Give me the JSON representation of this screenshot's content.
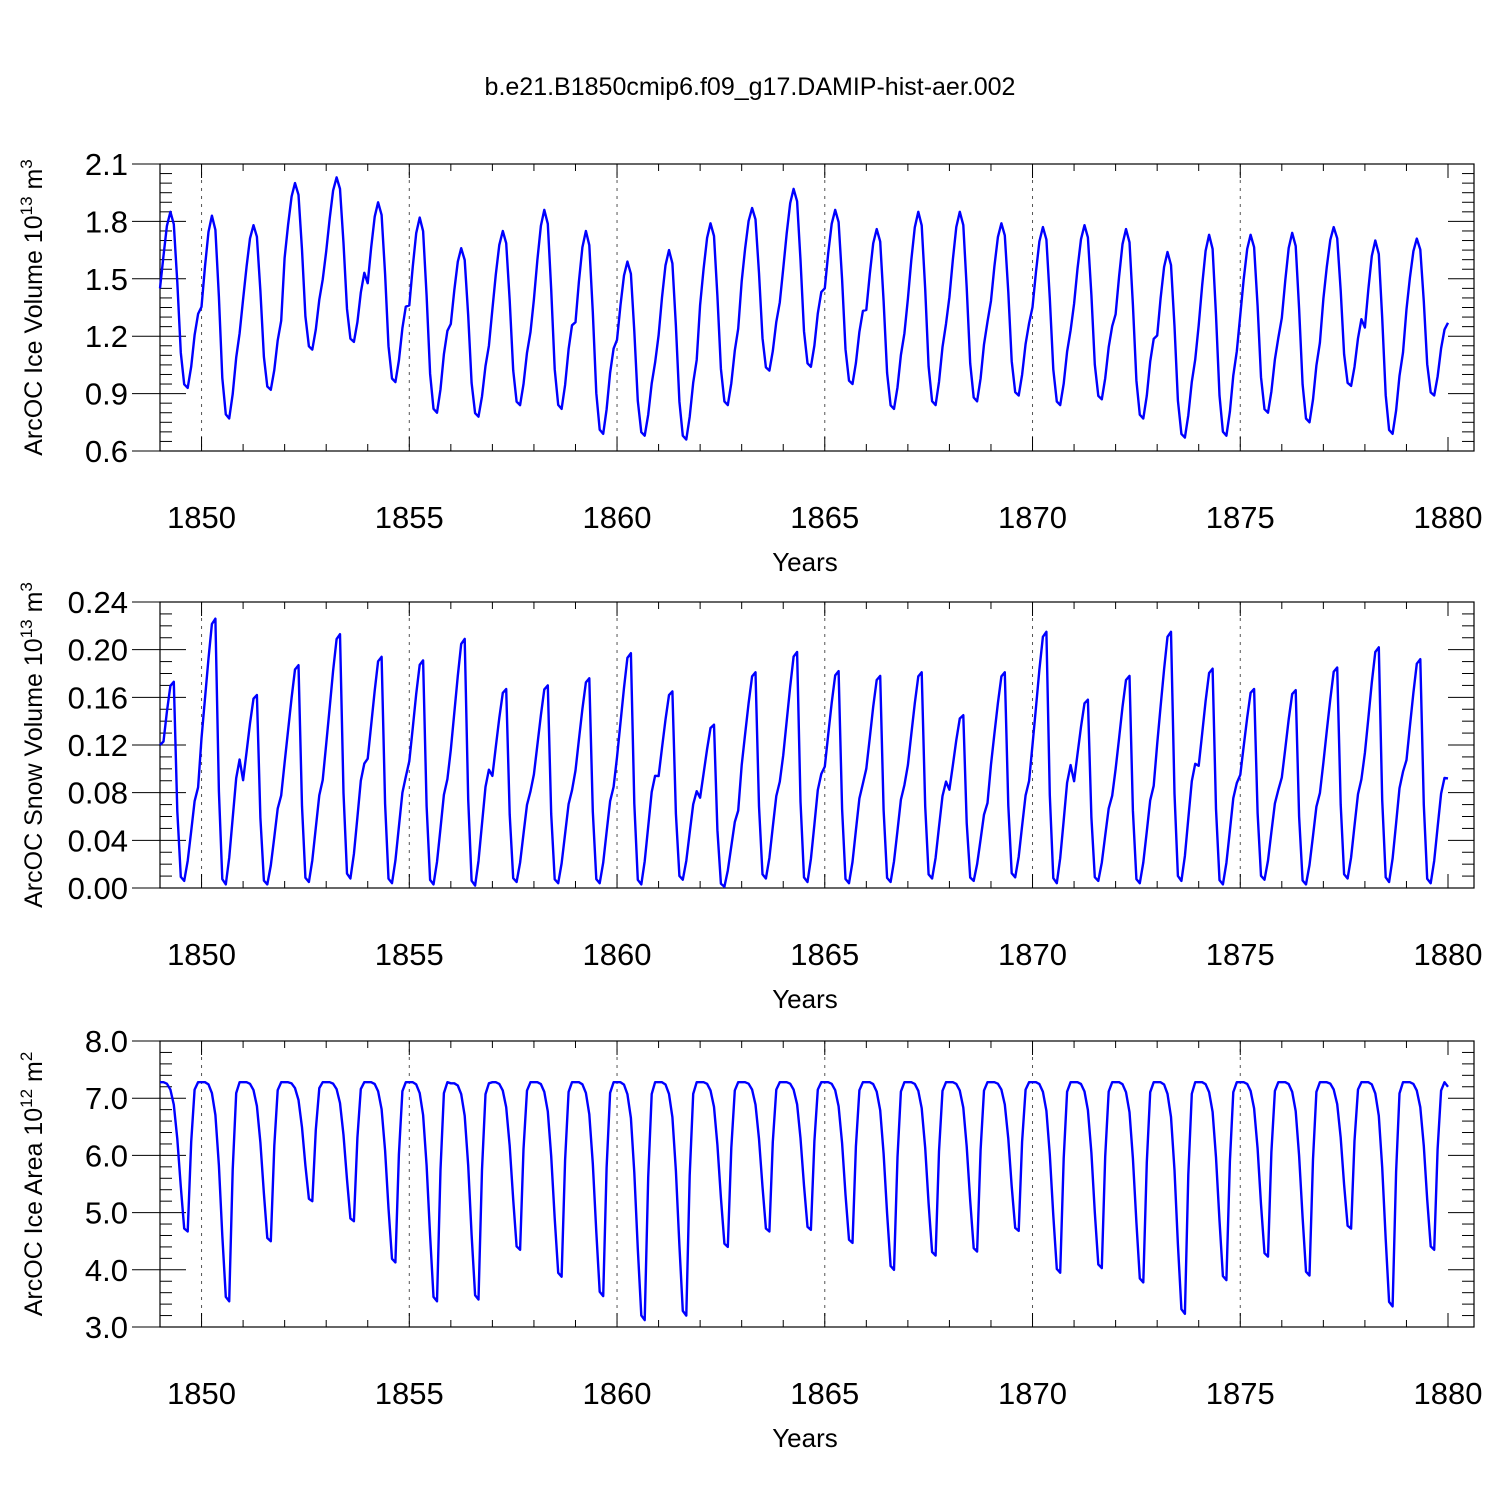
{
  "title": "b.e21.B1850cmip6.f09_g17.DAMIP-hist-aer.002",
  "colors": {
    "line": "#0000ff",
    "axis": "#000000",
    "grid": "#555555"
  },
  "chart_data": [
    {
      "type": "line",
      "name": "ice-volume",
      "ylabel": {
        "main": "ArcOC Ice Volume 10",
        "exp": "13",
        "unit": " m",
        "unit_exp": "3"
      },
      "xlabel": "Years",
      "xlim": [
        1849.0,
        1880.0
      ],
      "ylim": [
        0.6,
        2.1
      ],
      "xticks": [
        1850,
        1855,
        1860,
        1865,
        1870,
        1875,
        1880
      ],
      "yticks": [
        0.6,
        0.9,
        1.2,
        1.5,
        1.8,
        2.1
      ],
      "ytick_labels": [
        "0.6",
        "0.9",
        "1.2",
        "1.5",
        "1.8",
        "2.1"
      ],
      "ymin_minor": 0.05,
      "cycles": {
        "max": [
          1.85,
          1.83,
          1.78,
          2.0,
          2.03,
          1.9,
          1.82,
          1.66,
          1.75,
          1.86,
          1.75,
          1.59,
          1.65,
          1.79,
          1.87,
          1.97,
          1.86,
          1.76,
          1.85,
          1.85,
          1.79,
          1.77,
          1.78,
          1.76,
          1.64,
          1.73,
          1.73,
          1.74,
          1.77,
          1.7,
          1.71
        ],
        "min": [
          0.93,
          0.77,
          0.92,
          1.13,
          1.17,
          0.96,
          0.8,
          0.78,
          0.84,
          0.82,
          0.69,
          0.68,
          0.66,
          0.84,
          1.02,
          1.04,
          0.95,
          0.82,
          0.84,
          0.86,
          0.89,
          0.84,
          0.87,
          0.77,
          0.67,
          0.68,
          0.8,
          0.75,
          0.94,
          0.69,
          0.89
        ],
        "start": 1.45,
        "end": 1.27
      }
    },
    {
      "type": "line",
      "name": "snow-volume",
      "ylabel": {
        "main": "ArcOC Snow Volume 10",
        "exp": "13",
        "unit": " m",
        "unit_exp": "3"
      },
      "xlabel": "Years",
      "xlim": [
        1849.0,
        1880.0
      ],
      "ylim": [
        0.0,
        0.24
      ],
      "xticks": [
        1850,
        1855,
        1860,
        1865,
        1870,
        1875,
        1880
      ],
      "yticks": [
        0.0,
        0.04,
        0.08,
        0.12,
        0.16,
        0.2,
        0.24
      ],
      "ytick_labels": [
        "0.00",
        "0.04",
        "0.08",
        "0.12",
        "0.16",
        "0.20",
        "0.24"
      ],
      "ymin_minor": 0.01,
      "cycles": {
        "max": [
          0.173,
          0.226,
          0.162,
          0.187,
          0.213,
          0.194,
          0.191,
          0.209,
          0.167,
          0.17,
          0.176,
          0.197,
          0.165,
          0.137,
          0.181,
          0.198,
          0.182,
          0.178,
          0.181,
          0.145,
          0.181,
          0.215,
          0.158,
          0.178,
          0.215,
          0.184,
          0.167,
          0.166,
          0.185,
          0.202,
          0.192
        ],
        "min": [
          0.006,
          0.003,
          0.003,
          0.005,
          0.008,
          0.004,
          0.003,
          0.002,
          0.005,
          0.004,
          0.004,
          0.003,
          0.007,
          0.001,
          0.008,
          0.005,
          0.004,
          0.005,
          0.008,
          0.006,
          0.009,
          0.004,
          0.006,
          0.004,
          0.006,
          0.003,
          0.007,
          0.003,
          0.008,
          0.005,
          0.004
        ],
        "start": 0.12,
        "end": 0.092
      }
    },
    {
      "type": "line",
      "name": "ice-area",
      "ylabel": {
        "main": "ArcOC Ice Area 10",
        "exp": "12",
        "unit": " m",
        "unit_exp": "2"
      },
      "xlabel": "Years",
      "xlim": [
        1849.0,
        1880.0
      ],
      "ylim": [
        3.0,
        8.0
      ],
      "xticks": [
        1850,
        1855,
        1860,
        1865,
        1870,
        1875,
        1880
      ],
      "yticks": [
        3.0,
        4.0,
        5.0,
        6.0,
        7.0,
        8.0
      ],
      "ytick_labels": [
        "3.0",
        "4.0",
        "5.0",
        "6.0",
        "7.0",
        "8.0"
      ],
      "ymin_minor": 0.2,
      "cycles": {
        "max": [
          7.28,
          7.28,
          7.28,
          7.28,
          7.28,
          7.28,
          7.28,
          7.26,
          7.28,
          7.28,
          7.28,
          7.28,
          7.28,
          7.28,
          7.28,
          7.28,
          7.28,
          7.28,
          7.28,
          7.28,
          7.28,
          7.28,
          7.28,
          7.28,
          7.28,
          7.28,
          7.28,
          7.28,
          7.28,
          7.28,
          7.28
        ],
        "min": [
          4.67,
          3.45,
          4.5,
          5.2,
          4.85,
          4.13,
          3.45,
          3.48,
          4.35,
          3.88,
          3.54,
          3.12,
          3.2,
          4.4,
          4.67,
          4.7,
          4.47,
          4.0,
          4.25,
          4.32,
          4.68,
          3.95,
          4.03,
          3.78,
          3.23,
          3.82,
          4.23,
          3.9,
          4.72,
          3.36,
          4.35
        ],
        "start": 7.28,
        "end": 7.2
      }
    }
  ]
}
